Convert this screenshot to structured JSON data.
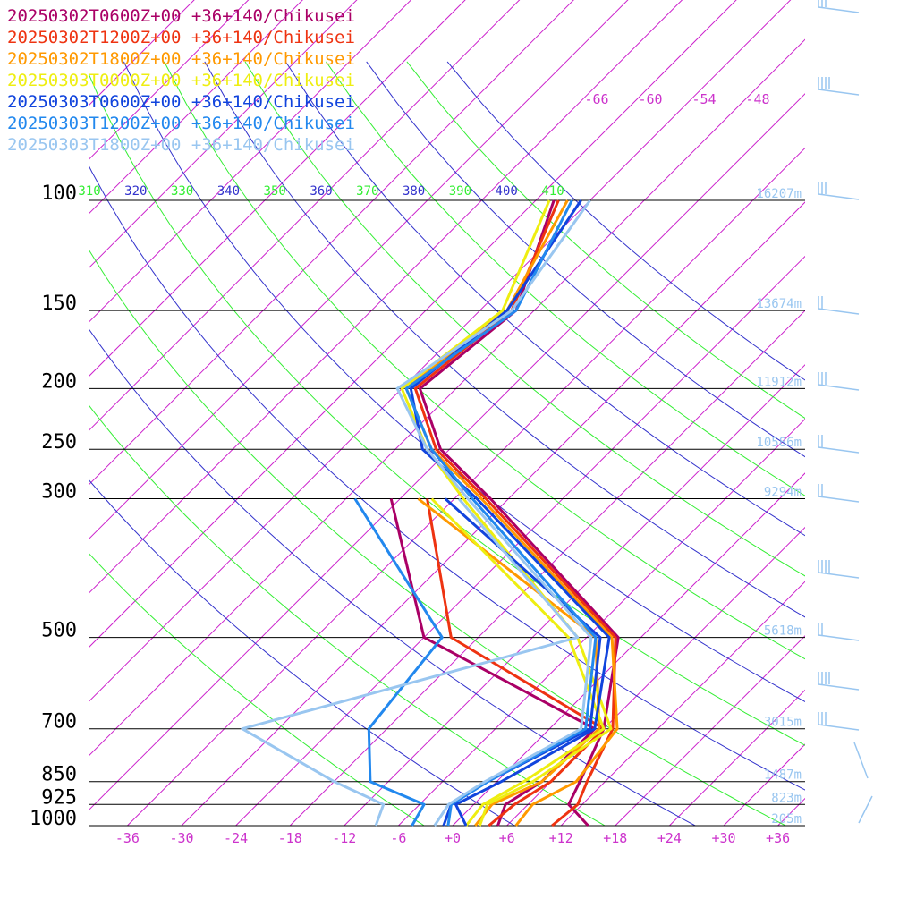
{
  "chart_data": {
    "type": "line",
    "title": "",
    "pressure_levels": [
      {
        "p": 100,
        "label": "100",
        "height": "16207m"
      },
      {
        "p": 150,
        "label": "150",
        "height": "13674m"
      },
      {
        "p": 200,
        "label": "200",
        "height": "11912m"
      },
      {
        "p": 250,
        "label": "250",
        "height": "10586m"
      },
      {
        "p": 300,
        "label": "300",
        "height": "9294m"
      },
      {
        "p": 500,
        "label": "500",
        "height": "5618m"
      },
      {
        "p": 700,
        "label": "700",
        "height": "3015m"
      },
      {
        "p": 850,
        "label": "850",
        "height": "1487m"
      },
      {
        "p": 925,
        "label": "925",
        "height": "823m"
      },
      {
        "p": 1000,
        "label": "1000",
        "height": "205m"
      }
    ],
    "x_ticks": [
      "-36",
      "-30",
      "-24",
      "-18",
      "-12",
      "-6",
      "+0",
      "+6",
      "+12",
      "+18",
      "+24",
      "+30",
      "+36"
    ],
    "x_tick_values": [
      -36,
      -30,
      -24,
      -18,
      -12,
      -6,
      0,
      6,
      12,
      18,
      24,
      30,
      36
    ],
    "top_ticks": [
      "-66",
      "-60",
      "-54",
      "-48"
    ],
    "theta_ticks": [
      {
        "label": "310",
        "color": "#33ee33"
      },
      {
        "label": "320",
        "color": "#3333cc"
      },
      {
        "label": "330",
        "color": "#33ee33"
      },
      {
        "label": "340",
        "color": "#3333cc"
      },
      {
        "label": "350",
        "color": "#33ee33"
      },
      {
        "label": "360",
        "color": "#3333cc"
      },
      {
        "label": "370",
        "color": "#33ee33"
      },
      {
        "label": "380",
        "color": "#3333cc"
      },
      {
        "label": "390",
        "color": "#33ee33"
      },
      {
        "label": "400",
        "color": "#3333cc"
      },
      {
        "label": "410",
        "color": "#33ee33"
      }
    ],
    "xlim": [
      -36,
      36
    ],
    "ylim": [
      1000,
      100
    ],
    "y_scale": "log",
    "skew": true,
    "legend_position": "top-left",
    "series": [
      {
        "name": "20250302T0600Z+00 +36+140/Chikusei",
        "color": "#aa0066",
        "temperature": [
          [
            1000,
            15.0
          ],
          [
            925,
            10.5
          ],
          [
            850,
            9.2
          ],
          [
            700,
            6.0
          ],
          [
            500,
            -2.5
          ],
          [
            300,
            -32.0
          ],
          [
            250,
            -43.0
          ],
          [
            200,
            -52.0
          ],
          [
            150,
            -50.0
          ],
          [
            100,
            -58.0
          ]
        ],
        "dewpoint": [
          [
            1000,
            5.0
          ],
          [
            925,
            3.5
          ],
          [
            850,
            5.0
          ],
          [
            700,
            5.0
          ],
          [
            500,
            -24.0
          ],
          [
            300,
            -43.0
          ]
        ]
      },
      {
        "name": "20250302T1200Z+00 +36+140/Chikusei",
        "color": "#ee3311",
        "temperature": [
          [
            1000,
            11.0
          ],
          [
            925,
            11.5
          ],
          [
            850,
            10.0
          ],
          [
            700,
            7.0
          ],
          [
            500,
            -2.8
          ],
          [
            300,
            -32.5
          ],
          [
            250,
            -43.5
          ],
          [
            200,
            -52.5
          ],
          [
            150,
            -50.5
          ],
          [
            100,
            -57.5
          ]
        ],
        "dewpoint": [
          [
            1000,
            4.0
          ],
          [
            925,
            4.5
          ],
          [
            850,
            6.0
          ],
          [
            700,
            6.0
          ],
          [
            500,
            -21.0
          ],
          [
            300,
            -39.0
          ]
        ]
      },
      {
        "name": "20250302T1800Z+00 +36+140/Chikusei",
        "color": "#ff9900",
        "temperature": [
          [
            1000,
            7.0
          ],
          [
            925,
            6.5
          ],
          [
            850,
            8.8
          ],
          [
            700,
            7.5
          ],
          [
            500,
            -3.2
          ],
          [
            300,
            -33.0
          ],
          [
            250,
            -44.0
          ],
          [
            200,
            -53.5
          ],
          [
            150,
            -51.0
          ],
          [
            100,
            -56.5
          ]
        ],
        "dewpoint": [
          [
            1000,
            2.5
          ],
          [
            925,
            2.0
          ],
          [
            850,
            5.0
          ],
          [
            700,
            5.5
          ],
          [
            500,
            -5.0
          ],
          [
            300,
            -40.0
          ]
        ]
      },
      {
        "name": "20250303T0000Z+00 +36+140/Chikusei",
        "color": "#eeee11",
        "temperature": [
          [
            1000,
            3.0
          ],
          [
            925,
            1.5
          ],
          [
            850,
            4.0
          ],
          [
            700,
            6.8
          ],
          [
            500,
            -7.0
          ],
          [
            300,
            -35.0
          ],
          [
            250,
            -44.5
          ],
          [
            200,
            -54.0
          ],
          [
            150,
            -51.5
          ],
          [
            100,
            -58.5
          ]
        ],
        "dewpoint": [
          [
            1000,
            1.5
          ],
          [
            925,
            1.0
          ],
          [
            850,
            3.0
          ],
          [
            700,
            6.0
          ],
          [
            500,
            -8.0
          ],
          [
            300,
            -38.5
          ]
        ]
      },
      {
        "name": "20250303T0600Z+00 +36+140/Chikusei",
        "color": "#1144dd",
        "temperature": [
          [
            1000,
            1.5
          ],
          [
            925,
            -2.0
          ],
          [
            850,
            0.5
          ],
          [
            700,
            5.0
          ],
          [
            500,
            -3.5
          ],
          [
            300,
            -33.5
          ],
          [
            250,
            -45.0
          ],
          [
            200,
            -53.0
          ],
          [
            150,
            -51.0
          ],
          [
            100,
            -55.0
          ]
        ],
        "dewpoint": [
          [
            1000,
            -1.0
          ],
          [
            925,
            -2.5
          ],
          [
            850,
            -1.0
          ],
          [
            700,
            4.5
          ],
          [
            500,
            -4.5
          ],
          [
            300,
            -37.0
          ]
        ]
      },
      {
        "name": "20250303T1200Z+00 +36+140/Chikusei",
        "color": "#2288ee",
        "temperature": [
          [
            1000,
            -0.5
          ],
          [
            925,
            -2.5
          ],
          [
            850,
            -1.0
          ],
          [
            700,
            4.0
          ],
          [
            500,
            -5.0
          ],
          [
            300,
            -34.0
          ],
          [
            250,
            -44.0
          ],
          [
            200,
            -53.5
          ],
          [
            150,
            -50.0
          ],
          [
            100,
            -56.0
          ]
        ],
        "dewpoint": [
          [
            1000,
            -4.5
          ],
          [
            925,
            -5.5
          ],
          [
            850,
            -14.0
          ],
          [
            700,
            -20.0
          ],
          [
            500,
            -22.0
          ],
          [
            300,
            -47.0
          ]
        ]
      },
      {
        "name": "20250303T1800Z+00 +36+140/Chikusei",
        "color": "#99c6f0",
        "temperature": [
          [
            1000,
            -2.0
          ],
          [
            925,
            -2.8
          ],
          [
            850,
            -1.3
          ],
          [
            700,
            3.5
          ],
          [
            500,
            -5.5
          ],
          [
            300,
            -34.5
          ],
          [
            250,
            -44.5
          ],
          [
            200,
            -54.5
          ],
          [
            150,
            -50.5
          ],
          [
            100,
            -54.0
          ]
        ],
        "dewpoint": [
          [
            1000,
            -8.5
          ],
          [
            925,
            -10.0
          ],
          [
            850,
            -18.0
          ],
          [
            700,
            -34.0
          ],
          [
            500,
            -7.0
          ],
          [
            300,
            -35.5
          ]
        ]
      }
    ]
  }
}
